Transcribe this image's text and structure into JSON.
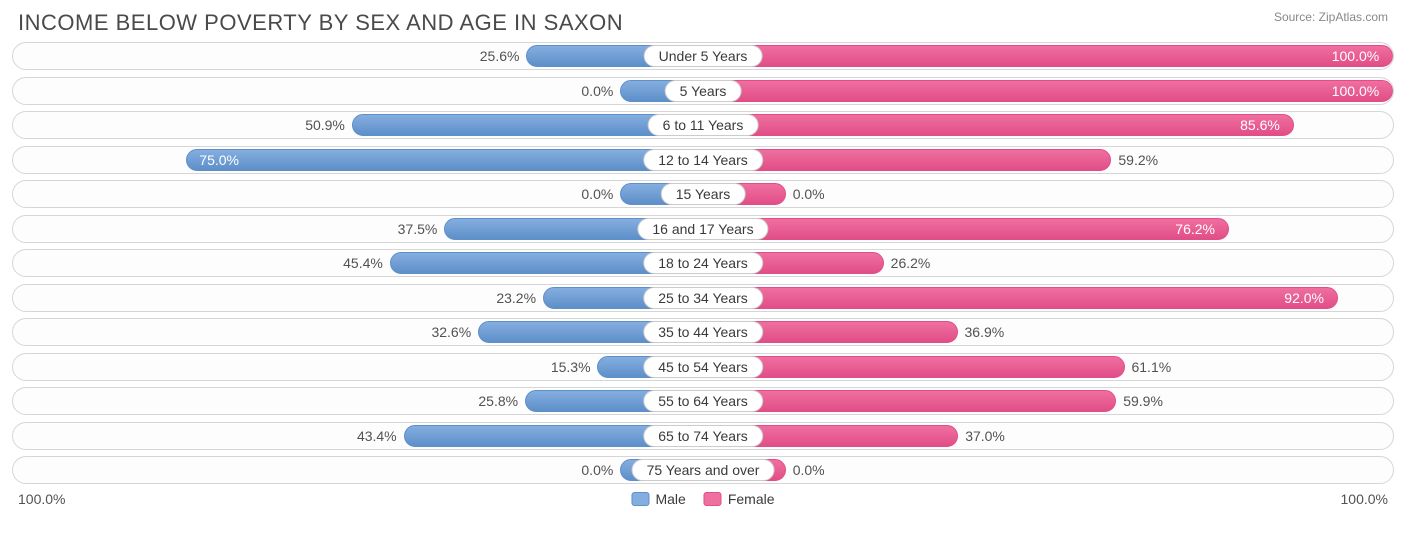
{
  "title": "INCOME BELOW POVERTY BY SEX AND AGE IN SAXON",
  "source": "Source: ZipAtlas.com",
  "axis": {
    "left": "100.0%",
    "right": "100.0%"
  },
  "legend": {
    "male": "Male",
    "female": "Female"
  },
  "colors": {
    "male_fill": "#85aee0",
    "male_border": "#5d8fc9",
    "female_fill": "#ef6fa0",
    "female_border": "#e14e87",
    "track_border": "#d6d6d6",
    "text": "#525252"
  },
  "min_bar_pct": 12,
  "rows": [
    {
      "category": "Under 5 Years",
      "male": 25.6,
      "female": 100.0,
      "male_label": "25.6%",
      "female_label": "100.0%"
    },
    {
      "category": "5 Years",
      "male": 0.0,
      "female": 100.0,
      "male_label": "0.0%",
      "female_label": "100.0%"
    },
    {
      "category": "6 to 11 Years",
      "male": 50.9,
      "female": 85.6,
      "male_label": "50.9%",
      "female_label": "85.6%"
    },
    {
      "category": "12 to 14 Years",
      "male": 75.0,
      "female": 59.2,
      "male_label": "75.0%",
      "female_label": "59.2%"
    },
    {
      "category": "15 Years",
      "male": 0.0,
      "female": 0.0,
      "male_label": "0.0%",
      "female_label": "0.0%"
    },
    {
      "category": "16 and 17 Years",
      "male": 37.5,
      "female": 76.2,
      "male_label": "37.5%",
      "female_label": "76.2%"
    },
    {
      "category": "18 to 24 Years",
      "male": 45.4,
      "female": 26.2,
      "male_label": "45.4%",
      "female_label": "26.2%"
    },
    {
      "category": "25 to 34 Years",
      "male": 23.2,
      "female": 92.0,
      "male_label": "23.2%",
      "female_label": "92.0%"
    },
    {
      "category": "35 to 44 Years",
      "male": 32.6,
      "female": 36.9,
      "male_label": "32.6%",
      "female_label": "36.9%"
    },
    {
      "category": "45 to 54 Years",
      "male": 15.3,
      "female": 61.1,
      "male_label": "15.3%",
      "female_label": "61.1%"
    },
    {
      "category": "55 to 64 Years",
      "male": 25.8,
      "female": 59.9,
      "male_label": "25.8%",
      "female_label": "59.9%"
    },
    {
      "category": "65 to 74 Years",
      "male": 43.4,
      "female": 37.0,
      "male_label": "43.4%",
      "female_label": "37.0%"
    },
    {
      "category": "75 Years and over",
      "male": 0.0,
      "female": 0.0,
      "male_label": "0.0%",
      "female_label": "0.0%"
    }
  ]
}
